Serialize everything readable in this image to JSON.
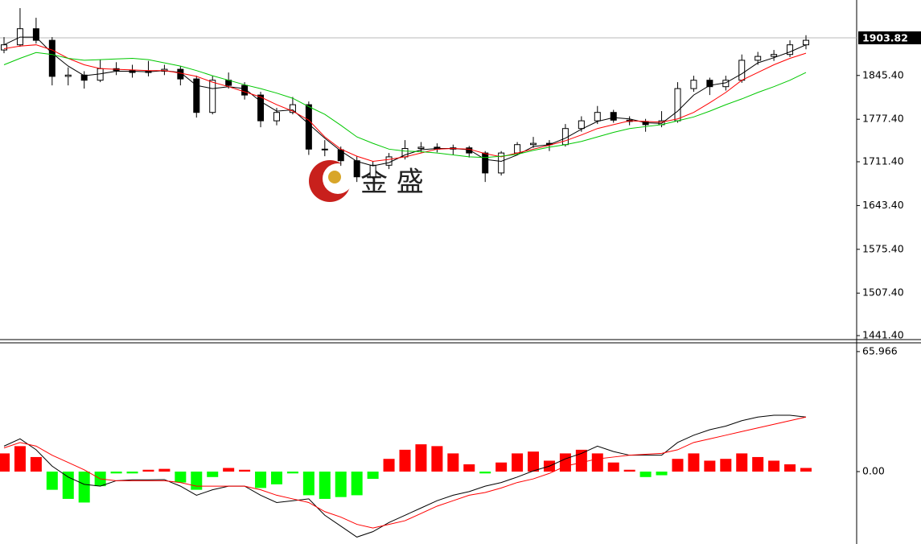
{
  "chart_data": [
    {
      "type": "candlestick",
      "open": [
        1885,
        1893,
        1918,
        1900,
        1844,
        1846,
        1838,
        1856,
        1853,
        1850,
        1852,
        1855,
        1840,
        1788,
        1838,
        1830,
        1815,
        1775,
        1788,
        1800,
        1731,
        1730,
        1713,
        1688,
        1706,
        1719,
        1732,
        1734,
        1731,
        1733,
        1725,
        1694,
        1725,
        1738,
        1740,
        1738,
        1763,
        1775,
        1788,
        1776,
        1774,
        1769,
        1775,
        1825,
        1838,
        1828,
        1838,
        1869,
        1875,
        1878,
        1893
      ],
      "high": [
        1905,
        1950,
        1935,
        1905,
        1858,
        1852,
        1870,
        1866,
        1862,
        1868,
        1862,
        1860,
        1845,
        1845,
        1850,
        1835,
        1820,
        1795,
        1812,
        1805,
        1745,
        1735,
        1720,
        1712,
        1725,
        1745,
        1742,
        1740,
        1738,
        1736,
        1728,
        1728,
        1742,
        1750,
        1745,
        1770,
        1782,
        1798,
        1792,
        1782,
        1778,
        1790,
        1835,
        1845,
        1842,
        1845,
        1878,
        1882,
        1885,
        1900,
        1908
      ],
      "low": [
        1880,
        1890,
        1895,
        1830,
        1830,
        1825,
        1835,
        1846,
        1842,
        1844,
        1846,
        1830,
        1780,
        1785,
        1825,
        1808,
        1765,
        1768,
        1785,
        1722,
        1720,
        1705,
        1680,
        1685,
        1700,
        1715,
        1726,
        1726,
        1722,
        1718,
        1680,
        1690,
        1722,
        1733,
        1728,
        1735,
        1758,
        1770,
        1772,
        1768,
        1758,
        1765,
        1772,
        1820,
        1815,
        1822,
        1834,
        1862,
        1868,
        1874,
        1886
      ],
      "close": [
        1893,
        1918,
        1900,
        1844,
        1846,
        1838,
        1856,
        1853,
        1850,
        1852,
        1855,
        1840,
        1788,
        1838,
        1830,
        1815,
        1775,
        1788,
        1800,
        1731,
        1730,
        1713,
        1688,
        1706,
        1719,
        1732,
        1734,
        1731,
        1733,
        1725,
        1694,
        1725,
        1738,
        1740,
        1738,
        1763,
        1775,
        1788,
        1776,
        1774,
        1769,
        1775,
        1825,
        1838,
        1828,
        1838,
        1869,
        1875,
        1878,
        1893,
        1900
      ],
      "up_color": "#ffffff",
      "down_color": "#000000",
      "lines": [
        {
          "color": "#000000",
          "values": [
            1893,
            1905,
            1905,
            1880,
            1860,
            1845,
            1848,
            1852,
            1852,
            1851,
            1853,
            1850,
            1830,
            1825,
            1828,
            1825,
            1805,
            1790,
            1792,
            1770,
            1748,
            1728,
            1712,
            1705,
            1710,
            1722,
            1730,
            1732,
            1732,
            1730,
            1715,
            1712,
            1722,
            1735,
            1738,
            1748,
            1762,
            1774,
            1780,
            1778,
            1772,
            1771,
            1790,
            1815,
            1830,
            1834,
            1848,
            1865,
            1873,
            1882,
            1893
          ]
        },
        {
          "color": "#ff0000",
          "values": [
            1887,
            1891,
            1893,
            1885,
            1872,
            1862,
            1856,
            1855,
            1854,
            1853,
            1853,
            1849,
            1844,
            1835,
            1828,
            1820,
            1812,
            1800,
            1790,
            1776,
            1750,
            1731,
            1720,
            1712,
            1715,
            1719,
            1725,
            1731,
            1732,
            1731,
            1724,
            1719,
            1725,
            1731,
            1737,
            1744,
            1753,
            1763,
            1769,
            1775,
            1774,
            1773,
            1778,
            1788,
            1803,
            1819,
            1838,
            1850,
            1862,
            1872,
            1880
          ]
        },
        {
          "color": "#00c800",
          "values": [
            1862,
            1872,
            1881,
            1878,
            1872,
            1869,
            1870,
            1871,
            1872,
            1870,
            1865,
            1860,
            1853,
            1845,
            1838,
            1831,
            1825,
            1818,
            1810,
            1797,
            1785,
            1768,
            1750,
            1740,
            1731,
            1728,
            1727,
            1725,
            1722,
            1719,
            1718,
            1720,
            1723,
            1729,
            1734,
            1738,
            1743,
            1750,
            1757,
            1763,
            1766,
            1769,
            1775,
            1781,
            1790,
            1800,
            1809,
            1819,
            1828,
            1838,
            1850
          ]
        }
      ],
      "last_price": 1903.82,
      "watermark": "金 盛",
      "ylim": [
        1435.2,
        1962.6
      ],
      "yticks": [
        {
          "value": 1845.4,
          "label": "1845.40"
        },
        {
          "value": 1777.4,
          "label": "1777.40"
        },
        {
          "value": 1711.4,
          "label": "1711.40"
        },
        {
          "value": 1643.4,
          "label": "1643.40"
        },
        {
          "value": 1575.4,
          "label": "1575.40"
        },
        {
          "value": 1507.4,
          "label": "1507.40"
        },
        {
          "value": 1441.4,
          "label": "1441.40"
        }
      ]
    },
    {
      "type": "macd",
      "values": [
        10,
        14,
        8,
        -10,
        -15,
        -17,
        -8,
        -1,
        -1,
        1,
        1.5,
        -6,
        -10,
        -3,
        2,
        1,
        -9,
        -7,
        -1,
        -13,
        -15,
        -14,
        -13,
        -4,
        7,
        12,
        15,
        14,
        10,
        4,
        -1,
        5,
        10,
        11,
        6,
        10,
        12,
        10,
        5,
        1,
        -3,
        -2,
        7,
        10,
        6,
        7,
        10,
        8,
        6,
        4,
        2
      ],
      "up_color": "#ff0000",
      "down_color": "#00ff00",
      "lines": [
        {
          "color": "#000000",
          "values": [
            14,
            18,
            12,
            3,
            -3,
            -7,
            -8,
            -5,
            -4.5,
            -4.5,
            -4.4,
            -8,
            -13,
            -10,
            -8,
            -8,
            -13,
            -17,
            -16,
            -15,
            -24,
            -30,
            -36,
            -33,
            -28,
            -24,
            -20,
            -16,
            -13,
            -11,
            -8,
            -6,
            -3,
            0.4,
            3,
            7,
            10,
            14,
            11,
            9,
            9,
            9,
            16,
            20,
            23,
            25,
            28,
            30,
            31,
            31,
            30
          ]
        },
        {
          "color": "#ff0000",
          "values": [
            13,
            16,
            14,
            9,
            5,
            1,
            -4,
            -5,
            -5,
            -5,
            -5,
            -6,
            -8,
            -8,
            -8,
            -8,
            -10,
            -13,
            -15,
            -17,
            -22,
            -25,
            -29,
            -31,
            -29,
            -27,
            -23,
            -19,
            -16,
            -13,
            -11.5,
            -9,
            -6,
            -4,
            -1,
            3,
            5,
            7,
            8,
            9,
            9.5,
            10,
            12,
            16,
            18,
            20,
            22,
            24,
            26,
            28,
            30
          ]
        }
      ],
      "ylim": [
        -39.8,
        69.9
      ],
      "yticks": [
        65.966,
        {
          "value": 0,
          "label": "0.00"
        }
      ]
    }
  ]
}
